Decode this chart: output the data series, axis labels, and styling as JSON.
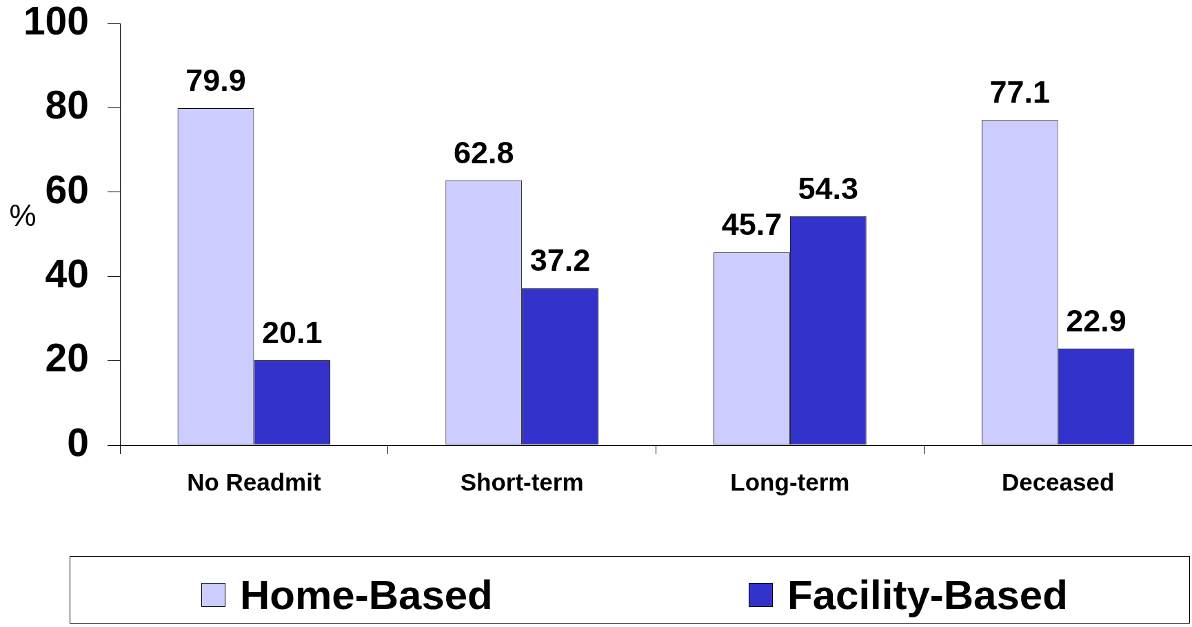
{
  "chart_data": {
    "type": "bar",
    "categories": [
      "No Readmit",
      "Short-term",
      "Long-term",
      "Deceased"
    ],
    "series": [
      {
        "name": "Home-Based",
        "color": "#ccccff",
        "values": [
          79.9,
          62.8,
          45.7,
          77.1
        ]
      },
      {
        "name": "Facility-Based",
        "color": "#3333cc",
        "values": [
          20.1,
          37.2,
          54.3,
          22.9
        ]
      }
    ],
    "ylabel": "%",
    "ylim": [
      0,
      100
    ],
    "yticks": [
      0,
      20,
      40,
      60,
      80,
      100
    ],
    "grid": false,
    "legend": "bottom",
    "data_labels": true
  }
}
